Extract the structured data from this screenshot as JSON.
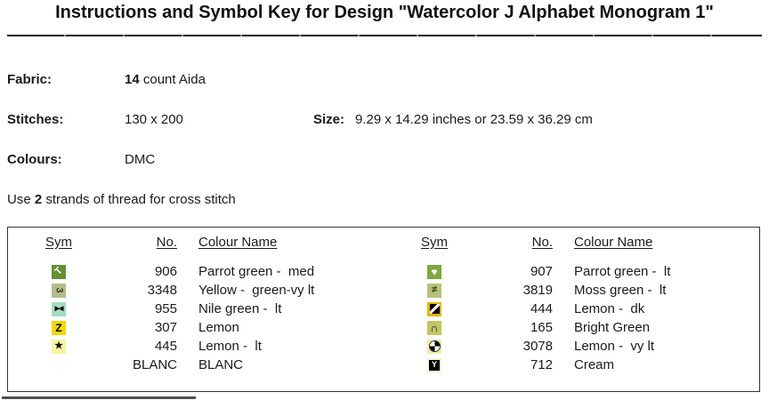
{
  "title": "Instructions and Symbol Key for Design \"Watercolor J Alphabet Monogram 1\"",
  "info": {
    "fabric_label": "Fabric:",
    "fabric_count": "14",
    "fabric_rest": " count Aida",
    "stitches_label": "Stitches:",
    "stitches_value": "130 x 200",
    "size_label": "Size:",
    "size_value": "9.29 x 14.29 inches or 23.59 x 36.29 cm",
    "colours_label": "Colours:",
    "colours_value": "DMC",
    "strands_prefix": "Use ",
    "strands_count": "2",
    "strands_suffix": " strands of thread for cross stitch"
  },
  "key": {
    "headers": {
      "sym": "Sym",
      "no": "No.",
      "name": "Colour Name"
    },
    "left": {
      "rows": [
        {
          "no": "906",
          "name": "Parrot green -  med",
          "sym": {
            "icon_name": "tilted-t-icon",
            "glyph": "T",
            "rotate": -45,
            "size": 11,
            "bg": "#649131",
            "fg": "#ffffff"
          }
        },
        {
          "no": "3348",
          "name": "Yellow -  green-vy lt",
          "sym": {
            "icon_name": "rotated-three-icon",
            "glyph": "3",
            "rotate": 90,
            "size": 11,
            "bg": "#b4bd8a",
            "fg": "#39421d"
          }
        },
        {
          "no": "955",
          "name": "Nile green -  lt",
          "sym": {
            "icon_name": "bowtie-icon",
            "glyph": "▶◀",
            "size": 7,
            "ls": -1,
            "bg": "#a5dcc0",
            "fg": "#000000"
          }
        },
        {
          "no": "307",
          "name": "Lemon",
          "sym": {
            "icon_name": "letter-z-icon",
            "glyph": "Z",
            "size": 12,
            "bg": "#f2d800",
            "fg": "#000000"
          }
        },
        {
          "no": "445",
          "name": "Lemon -  lt",
          "sym": {
            "icon_name": "star-icon",
            "glyph": "★",
            "size": 11,
            "bg": "#f8f4a3",
            "fg": "#111111"
          }
        },
        {
          "no": "BLANC",
          "name": "BLANC",
          "sym": {
            "icon_name": "blank-swatch",
            "glyph": "",
            "bg": "#fefefe",
            "fg": "#000000"
          }
        }
      ]
    },
    "right": {
      "rows": [
        {
          "no": "907",
          "name": "Parrot green -  lt",
          "sym": {
            "icon_name": "heart-icon",
            "glyph": "♥",
            "size": 12,
            "bg": "#7daa3f",
            "fg": "#ffffff"
          }
        },
        {
          "no": "3819",
          "name": "Moss green -  lt",
          "sym": {
            "icon_name": "not-equal-icon",
            "glyph": "≠",
            "size": 11,
            "bg": "#babf7a",
            "fg": "#333d18"
          }
        },
        {
          "no": "444",
          "name": "Lemon -  dk",
          "sym": {
            "icon_name": "diagonal-black-square-icon",
            "kind": "diag",
            "bg": "#e0b800"
          }
        },
        {
          "no": "165",
          "name": "Bright Green",
          "sym": {
            "icon_name": "arch-icon",
            "glyph": "∩",
            "size": 12,
            "bg": "#c1c566",
            "fg": "#000000"
          }
        },
        {
          "no": "3078",
          "name": "Lemon -  vy lt",
          "sym": {
            "icon_name": "quartered-circle-icon",
            "kind": "quad",
            "bg": "#f0eaaa"
          }
        },
        {
          "no": "712",
          "name": "Cream",
          "sym": {
            "icon_name": "letter-y-square-icon",
            "kind": "ysq",
            "glyph": "Y",
            "bg": "#f5f0d2"
          }
        }
      ]
    }
  }
}
